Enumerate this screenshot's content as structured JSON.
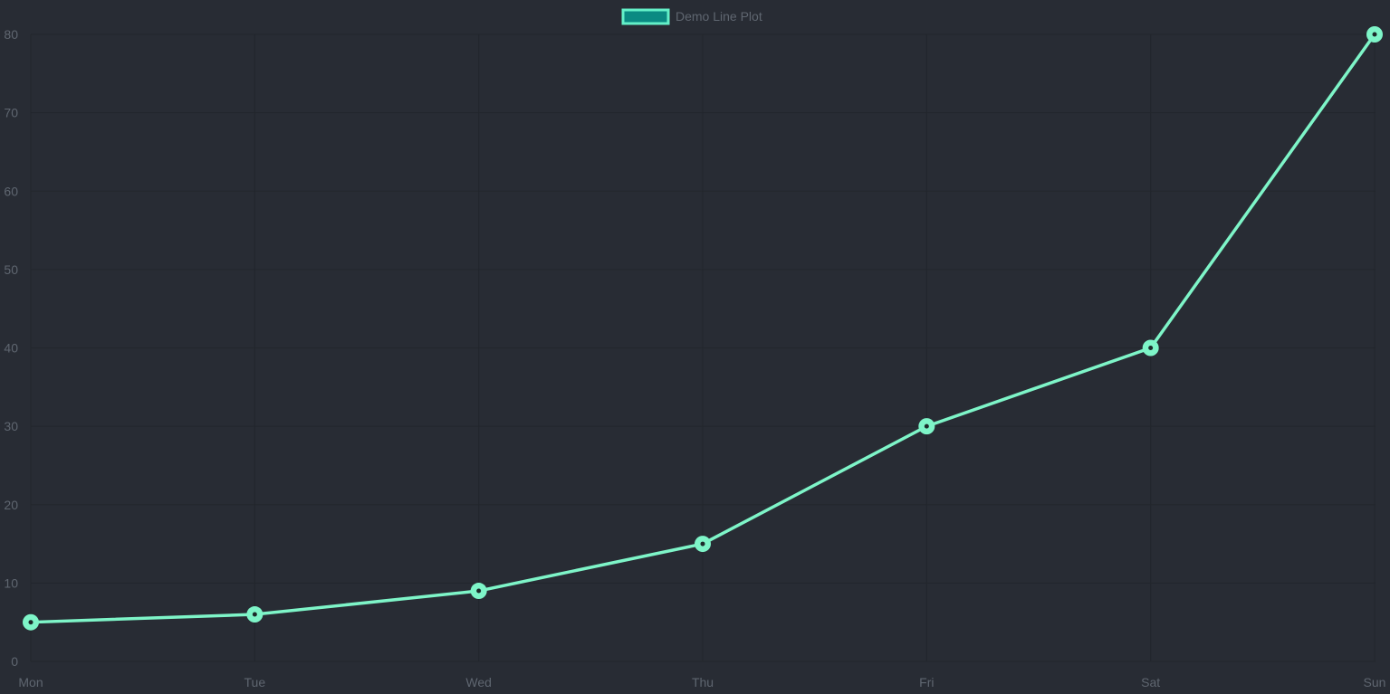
{
  "colors": {
    "background": "#282c34",
    "grid": "#22262c",
    "line": "#7ef5c8",
    "legend_fill": "#0a8a82",
    "legend_stroke": "#63f0c8",
    "point_center": "#1d2a2a",
    "tick_text": "#5f6670",
    "legend_text": "#5f6670"
  },
  "chart_data": {
    "type": "line",
    "title": "",
    "xlabel": "",
    "ylabel": "",
    "categories": [
      "Mon",
      "Tue",
      "Wed",
      "Thu",
      "Fri",
      "Sat",
      "Sun"
    ],
    "series": [
      {
        "name": "Demo Line Plot",
        "values": [
          5,
          6,
          9,
          15,
          30,
          40,
          80
        ]
      }
    ],
    "ylim": [
      0,
      80
    ],
    "yticks": [
      0,
      10,
      20,
      30,
      40,
      50,
      60,
      70,
      80
    ],
    "ytick_labels": [
      "0",
      "10",
      "20",
      "30",
      "40",
      "50",
      "60",
      "70",
      "80"
    ],
    "grid": true,
    "legend_position": "top-center"
  }
}
